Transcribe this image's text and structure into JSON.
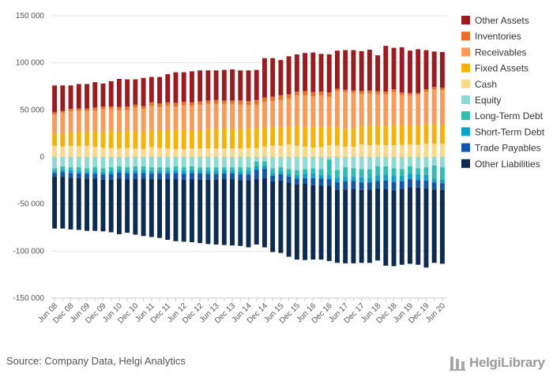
{
  "source_text": "Source: Company Data, Helgi Analytics",
  "logo_text": "HelgiLibrary",
  "chart_data": {
    "type": "bar",
    "stacked": true,
    "ylim": [
      -150000,
      150000
    ],
    "yticks": [
      150000,
      100000,
      50000,
      0,
      -50000,
      -100000,
      -150000
    ],
    "ytick_labels": [
      "150 000",
      "100 000",
      "50 000",
      "0",
      "-50 000",
      "-100 000",
      "-150 000"
    ],
    "grid": "horizontal",
    "legend_position": "right",
    "categories": [
      "Jun 08",
      "Sep 08",
      "Dec 08",
      "Mar 09",
      "Jun 09",
      "Sep 09",
      "Dec 09",
      "Mar 10",
      "Jun 10",
      "Sep 10",
      "Dec 10",
      "Mar 11",
      "Jun 11",
      "Sep 11",
      "Dec 11",
      "Mar 12",
      "Jun 12",
      "Sep 12",
      "Dec 12",
      "Mar 13",
      "Jun 13",
      "Sep 13",
      "Dec 13",
      "Mar 14",
      "Jun 14",
      "Sep 14",
      "Dec 14",
      "Mar 15",
      "Jun 15",
      "Sep 15",
      "Dec 15",
      "Mar 16",
      "Jun 16",
      "Sep 16",
      "Dec 16",
      "Mar 17",
      "Jun 17",
      "Sep 17",
      "Dec 17",
      "Mar 18",
      "Jun 18",
      "Sep 18",
      "Dec 18",
      "Mar 19",
      "Jun 19",
      "Sep 19",
      "Dec 19",
      "Mar 20",
      "Jun 20"
    ],
    "x_tick_labels": [
      "Jun 08",
      "Dec 08",
      "Jun 09",
      "Dec 09",
      "Jun 10",
      "Dec 10",
      "Jun 11",
      "Dec 11",
      "Jun 12",
      "Dec 12",
      "Jun 13",
      "Dec 13",
      "Jun 14",
      "Dec 14",
      "Jun 15",
      "Dec 15",
      "Jun 16",
      "Dec 16",
      "Jun 17",
      "Dec 17",
      "Jun 18",
      "Dec 18",
      "Jun 19",
      "Dec 19",
      "Jun 20"
    ],
    "legend": [
      {
        "name": "Other Assets",
        "color": "#9b1c20"
      },
      {
        "name": "Inventories",
        "color": "#ee6b2c"
      },
      {
        "name": "Receivables",
        "color": "#f79a5a"
      },
      {
        "name": "Fixed Assets",
        "color": "#f5b20a"
      },
      {
        "name": "Cash",
        "color": "#fbd98a"
      },
      {
        "name": "Equity",
        "color": "#8fdad4"
      },
      {
        "name": "Long-Term Debt",
        "color": "#2fbfb0"
      },
      {
        "name": "Short-Term Debt",
        "color": "#0fa2c8"
      },
      {
        "name": "Trade Payables",
        "color": "#1257a7"
      },
      {
        "name": "Other Liabilities",
        "color": "#0d2a4f"
      }
    ],
    "assets_series": [
      {
        "name": "Cash",
        "color": "#fbd98a",
        "values": [
          12000,
          11000,
          12000,
          11500,
          12000,
          11000,
          10000,
          9500,
          9000,
          9500,
          9000,
          8500,
          10500,
          9500,
          9000,
          8500,
          8500,
          9000,
          9000,
          9000,
          9000,
          9000,
          9000,
          9000,
          9500,
          9500,
          11000,
          12000,
          12000,
          13500,
          12000,
          11000,
          10000,
          10500,
          12500,
          12000,
          11000,
          11000,
          13500,
          12500,
          13000,
          12500,
          12500,
          13000,
          13500,
          13000,
          14000,
          14000,
          14000
        ]
      },
      {
        "name": "Fixed Assets",
        "color": "#f5b20a",
        "values": [
          13000,
          14000,
          14000,
          15000,
          15000,
          16000,
          17000,
          18000,
          17000,
          18000,
          17500,
          18500,
          17500,
          18500,
          19500,
          20500,
          20500,
          19500,
          19500,
          20500,
          21500,
          20500,
          20500,
          20500,
          20500,
          20500,
          20000,
          19500,
          20000,
          18500,
          21000,
          21000,
          22000,
          21500,
          19500,
          20000,
          19000,
          19500,
          19000,
          20500,
          20000,
          20000,
          21500,
          20000,
          20000,
          20000,
          21500,
          20500,
          19500
        ]
      },
      {
        "name": "Receivables",
        "color": "#f79a5a",
        "values": [
          20000,
          22000,
          22500,
          22500,
          22000,
          22500,
          24000,
          23500,
          24000,
          22500,
          26000,
          24000,
          26500,
          25000,
          26000,
          24500,
          26000,
          26000,
          27000,
          27000,
          26000,
          27000,
          27000,
          26000,
          25000,
          25500,
          27500,
          28000,
          28500,
          30000,
          32500,
          33500,
          32500,
          33500,
          32000,
          38000,
          39000,
          37500,
          34500,
          34500,
          33500,
          34000,
          35000,
          32500,
          32000,
          33000,
          34000,
          37500,
          37500
        ]
      },
      {
        "name": "Inventories",
        "color": "#ee6b2c",
        "values": [
          2500,
          2000,
          2500,
          2500,
          2500,
          3000,
          2500,
          2500,
          3000,
          3500,
          3000,
          3000,
          3500,
          4000,
          3500,
          4000,
          3500,
          3500,
          3500,
          3500,
          4000,
          3500,
          3500,
          4500,
          4500,
          5000,
          4500,
          4500,
          5000,
          4500,
          4000,
          4500,
          4500,
          4000,
          4500,
          2500,
          2500,
          2500,
          3000,
          3000,
          3500,
          3000,
          3000,
          3000,
          2500,
          2000,
          2500,
          2500,
          2500
        ]
      },
      {
        "name": "Other Assets",
        "color": "#9b1c20",
        "values": [
          28500,
          27000,
          25000,
          26000,
          26000,
          27000,
          24500,
          27000,
          30000,
          29000,
          27000,
          30000,
          27000,
          28000,
          30000,
          32500,
          31500,
          33000,
          33000,
          32000,
          31500,
          32500,
          33000,
          32000,
          32500,
          32000,
          42000,
          41000,
          37500,
          40500,
          39500,
          40500,
          42000,
          40000,
          40500,
          40500,
          42000,
          43000,
          42500,
          43500,
          38000,
          48500,
          44000,
          48000,
          45000,
          46500,
          41500,
          37500,
          38000
        ]
      }
    ],
    "liabilities_series": [
      {
        "name": "Equity",
        "color": "#8fdad4",
        "values": [
          -12000,
          -10000,
          -11000,
          -11000,
          -12000,
          -11000,
          -12000,
          -11000,
          -10000,
          -11000,
          -10000,
          -10000,
          -11000,
          -11000,
          -11000,
          -10000,
          -11000,
          -10000,
          -11000,
          -11000,
          -11000,
          -11000,
          -11000,
          -11000,
          -11000,
          -5000,
          -5000,
          -12000,
          -11000,
          -13000,
          -14000,
          -13000,
          -12000,
          -13000,
          -3000,
          -14000,
          -11000,
          -12000,
          -13000,
          -13000,
          -10000,
          -10000,
          -12000,
          -13000,
          -10000,
          -12000,
          -11000,
          -9000,
          -11000
        ]
      },
      {
        "name": "Long-Term Debt",
        "color": "#2fbfb0",
        "values": [
          -3000,
          -3500,
          -3000,
          -4000,
          -4000,
          -4500,
          -4000,
          -4000,
          -3500,
          -4000,
          -4000,
          -3500,
          -4000,
          -3500,
          -3500,
          -4000,
          -3500,
          -3500,
          -3500,
          -3500,
          -3500,
          -3000,
          -3500,
          -4500,
          -4500,
          -5000,
          -4000,
          -5000,
          -4500,
          -5000,
          -5000,
          -5000,
          -5500,
          -6000,
          -16000,
          -8000,
          -10000,
          -9000,
          -8500,
          -9000,
          -9500,
          -8500,
          -7500,
          -7000,
          -7500,
          -6500,
          -8000,
          -14000,
          -13000
        ]
      },
      {
        "name": "Short-Term Debt",
        "color": "#0fa2c8",
        "values": [
          -2000,
          -2500,
          -3000,
          -2500,
          -2000,
          -2500,
          -2500,
          -3000,
          -3000,
          -2500,
          -3000,
          -3500,
          -2500,
          -3000,
          -3000,
          -3000,
          -3500,
          -3500,
          -3000,
          -3500,
          -3500,
          -3500,
          -3000,
          -3000,
          -3000,
          -3500,
          -3500,
          -3000,
          -3000,
          -3000,
          -4000,
          -4500,
          -5000,
          -4000,
          -4500,
          -5000,
          -5000,
          -4500,
          -5500,
          -5000,
          -6000,
          -6500,
          -7000,
          -6000,
          -6000,
          -6000,
          -6000,
          -4000,
          -4000
        ]
      },
      {
        "name": "Trade Payables",
        "color": "#1257a7",
        "values": [
          -4000,
          -5000,
          -5000,
          -5000,
          -5500,
          -5000,
          -5500,
          -6000,
          -6500,
          -6000,
          -6500,
          -6000,
          -6000,
          -6000,
          -6000,
          -6500,
          -6000,
          -6500,
          -6500,
          -6000,
          -6000,
          -6000,
          -6000,
          -6000,
          -6000,
          -10000,
          -10000,
          -6000,
          -6500,
          -6000,
          -6000,
          -6000,
          -7500,
          -7500,
          -7000,
          -8000,
          -8500,
          -8500,
          -8000,
          -7500,
          -8000,
          -9000,
          -9000,
          -8000,
          -8500,
          -8000,
          -8500,
          -7500,
          -7000
        ]
      },
      {
        "name": "Other Liabilities",
        "color": "#0d2a4f",
        "values": [
          -55000,
          -55000,
          -55000,
          -55000,
          -55000,
          -55500,
          -55000,
          -56000,
          -59000,
          -57000,
          -59000,
          -61000,
          -61500,
          -62500,
          -64500,
          -66000,
          -66000,
          -67000,
          -67500,
          -68500,
          -69000,
          -70000,
          -70500,
          -70000,
          -71500,
          -69500,
          -73500,
          -75000,
          -77000,
          -79000,
          -80000,
          -81000,
          -79000,
          -78500,
          -80000,
          -77500,
          -78500,
          -79000,
          -77500,
          -78000,
          -76500,
          -81500,
          -80500,
          -80500,
          -81500,
          -82000,
          -84000,
          -78000,
          -78500
        ]
      }
    ]
  }
}
